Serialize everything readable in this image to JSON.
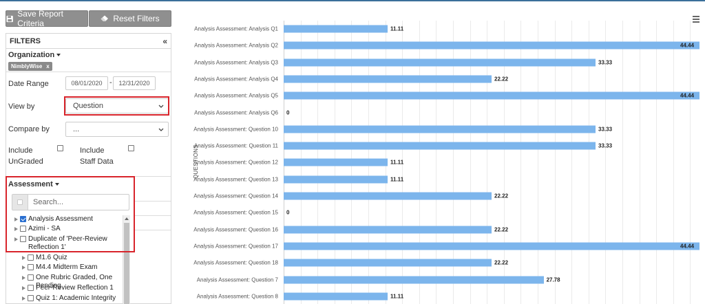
{
  "toolbar": {
    "save_label": "Save Report Criteria",
    "reset_label": "Reset Filters",
    "save_icon": "floppy-disk-icon",
    "reset_icon": "eraser-icon"
  },
  "filters": {
    "title": "FILTERS",
    "collapse_glyph": "«",
    "organization_label": "Organization",
    "organization_chip": "NimblyWise",
    "chip_remove": "x",
    "date_range_label": "Date Range",
    "date_from": "08/01/2020",
    "date_separator": "-",
    "date_to": "12/31/2020",
    "view_by_label": "View by",
    "view_by_value": "Question",
    "compare_by_label": "Compare by",
    "compare_by_value": "...",
    "include_ungraded_line1": "Include",
    "include_ungraded_line2": "UnGraded",
    "include_staff_line1": "Include",
    "include_staff_line2": "Staff Data",
    "assessment_label": "Assessment",
    "search_placeholder": "Search...",
    "assessments": [
      {
        "label": "Analysis Assessment",
        "checked": true
      },
      {
        "label": "Azimi - SA",
        "checked": false
      },
      {
        "label": "Duplicate of 'Peer-Review Reflection 1'",
        "checked": false
      },
      {
        "label": "M1.6 Quiz",
        "checked": false
      },
      {
        "label": "M4.4 Midterm Exam",
        "checked": false
      },
      {
        "label": "One Rubric Graded, One Pending",
        "checked": false
      },
      {
        "label": "Peer-Review Reflection 1",
        "checked": false
      },
      {
        "label": "Quiz 1: Academic Integrity",
        "checked": false
      }
    ]
  },
  "colors": {
    "bar": "#7cb5ec",
    "highlight": "#d8232a",
    "button": "#8f8f8f"
  },
  "chart_data": {
    "type": "bar",
    "orientation": "horizontal",
    "ylabel": "QUESTIONS",
    "xlim": [
      0,
      44.44
    ],
    "grid": true,
    "categories": [
      "Analysis Assessment: Analysis Q1",
      "Analysis Assessment: Analysis Q2",
      "Analysis Assessment: Analysis Q3",
      "Analysis Assessment: Analysis Q4",
      "Analysis Assessment: Analysis Q5",
      "Analysis Assessment: Analysis Q6",
      "Analysis Assessment: Question 10",
      "Analysis Assessment: Question 11",
      "Analysis Assessment: Question 12",
      "Analysis Assessment: Question 13",
      "Analysis Assessment: Question 14",
      "Analysis Assessment: Question 15",
      "Analysis Assessment: Question 16",
      "Analysis Assessment: Question 17",
      "Analysis Assessment: Question 18",
      "Analysis Assessment: Question 7",
      "Analysis Assessment: Question 8"
    ],
    "values": [
      11.11,
      44.44,
      33.33,
      22.22,
      44.44,
      0,
      33.33,
      33.33,
      11.11,
      11.11,
      22.22,
      0,
      22.22,
      44.44,
      22.22,
      27.78,
      11.11
    ],
    "value_labels": [
      "11.11",
      "44.44",
      "33.33",
      "22.22",
      "44.44",
      "0",
      "33.33",
      "33.33",
      "11.11",
      "11.11",
      "22.22",
      "0",
      "22.22",
      "44.44",
      "22.22",
      "27.78",
      "11.11"
    ]
  },
  "chart_menu_icon": "hamburger-menu-icon"
}
